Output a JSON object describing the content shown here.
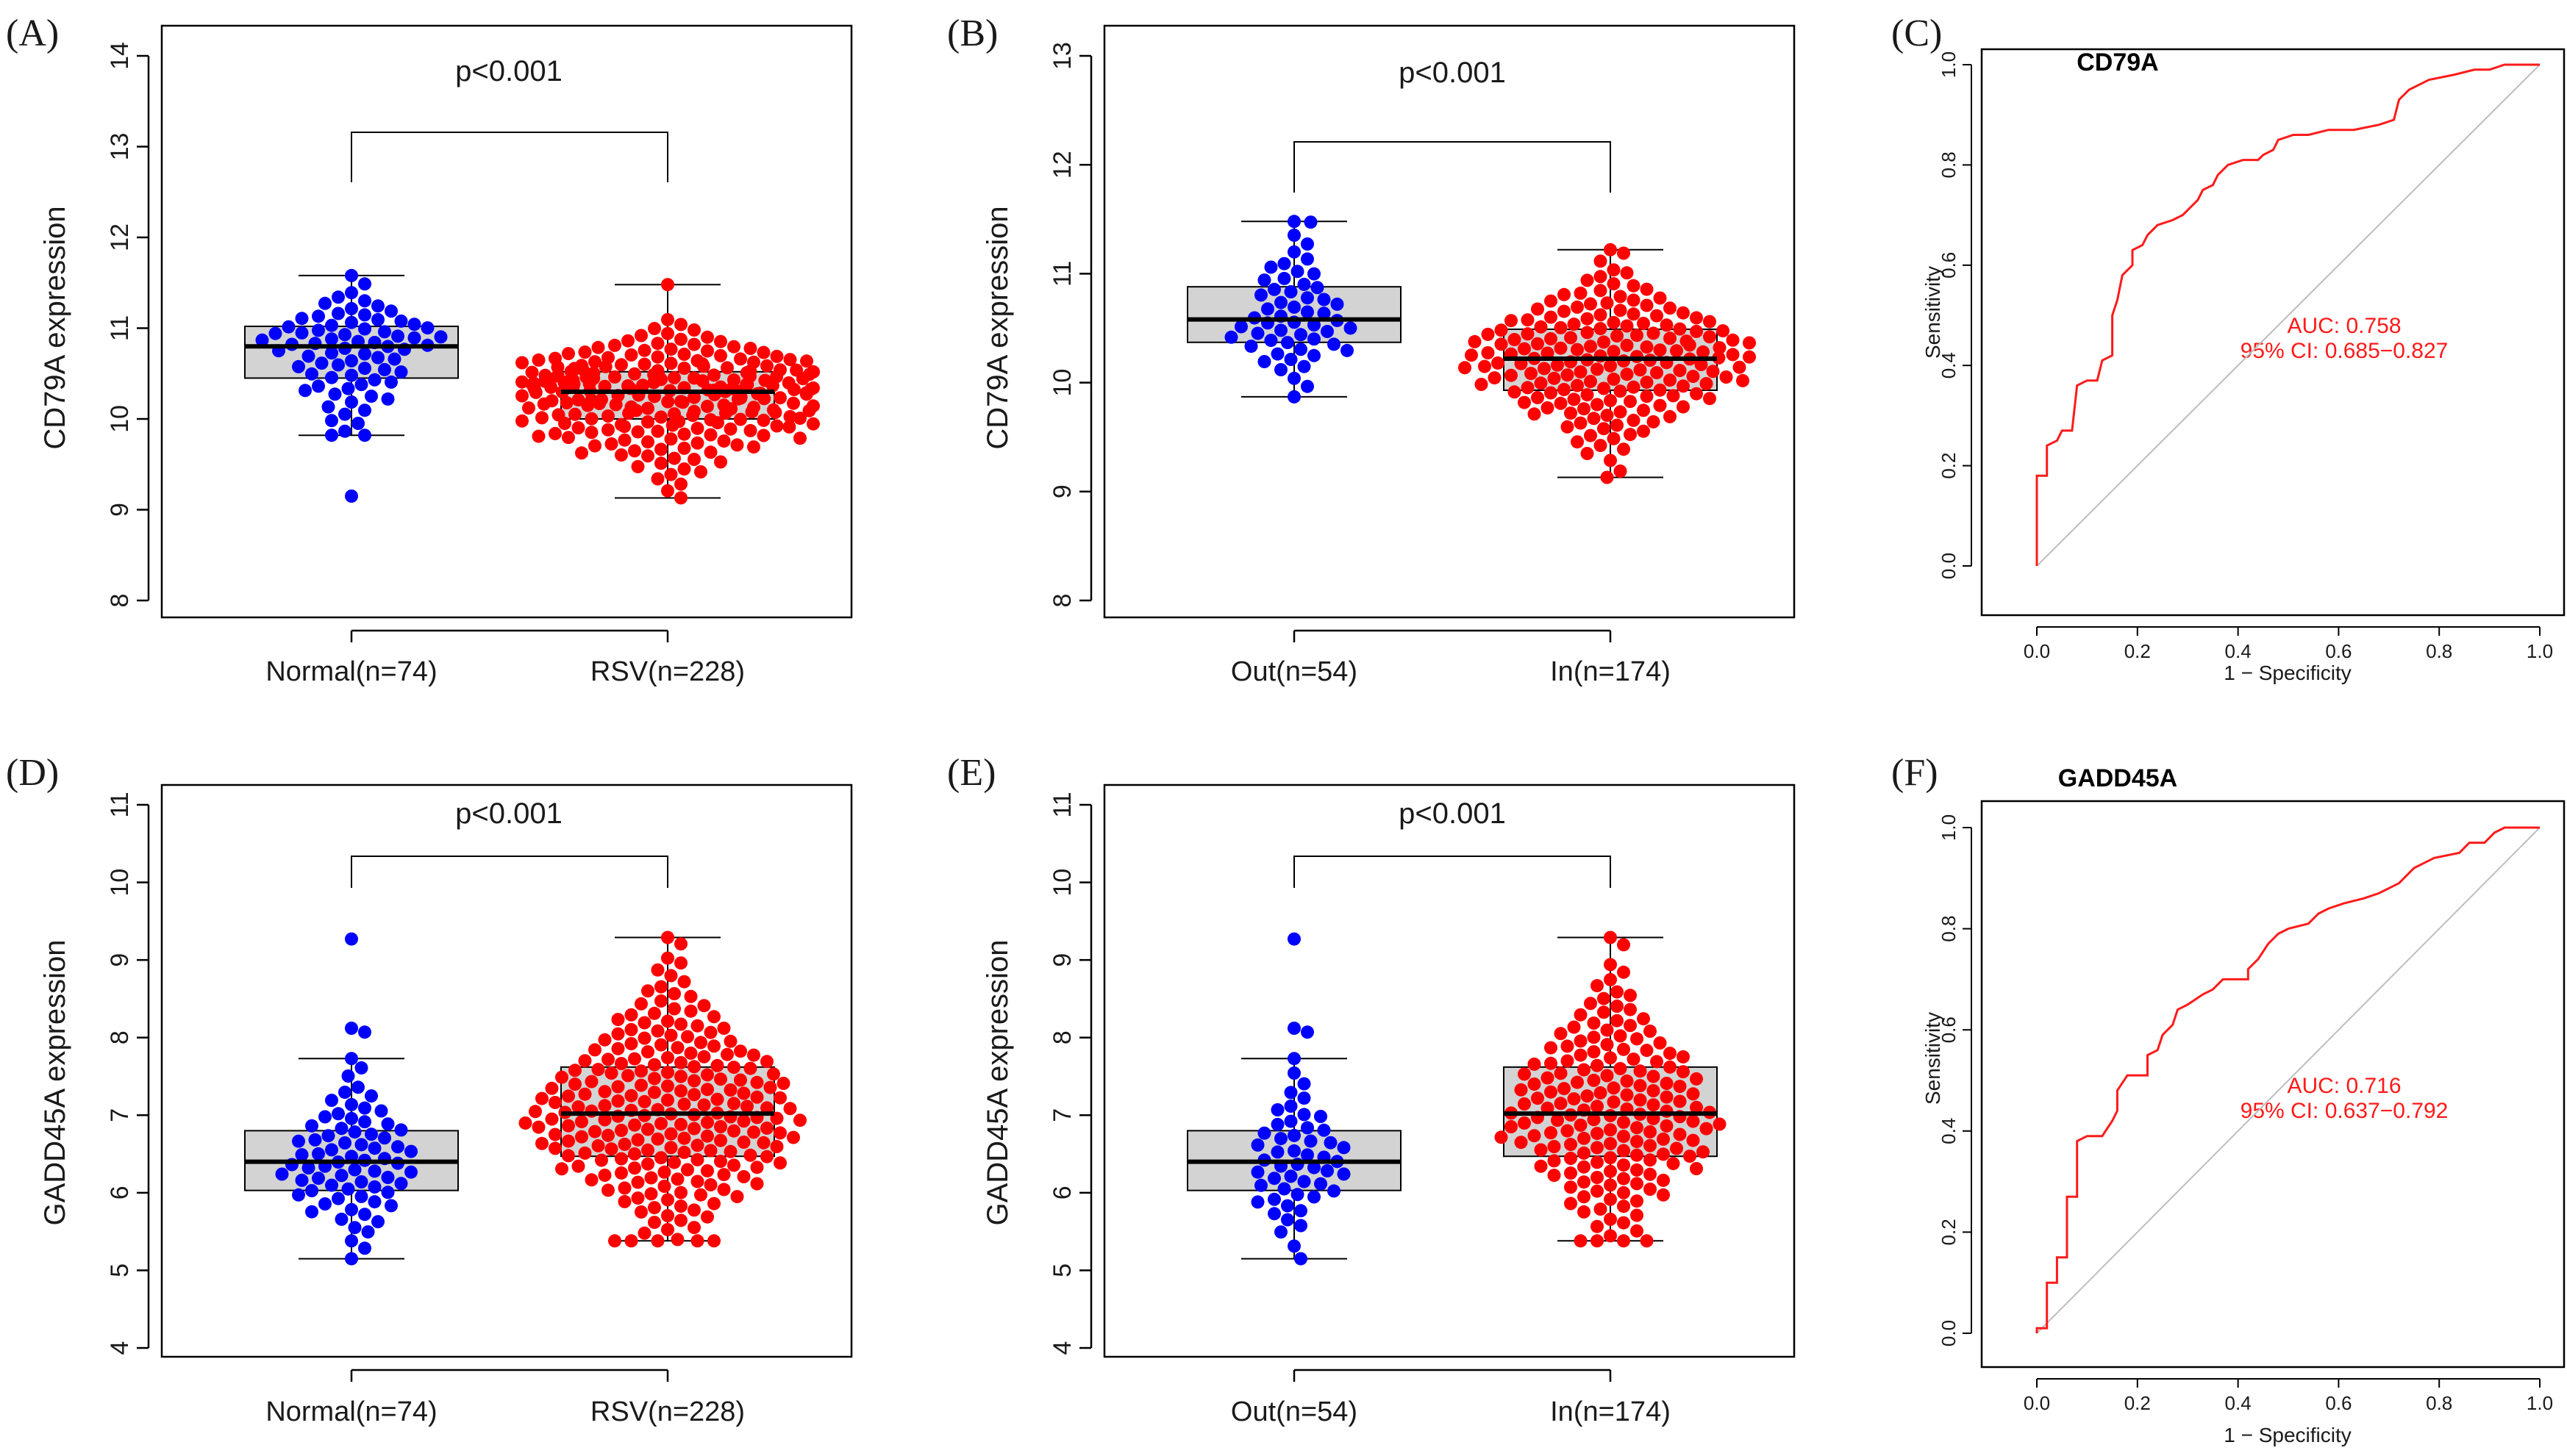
{
  "chart_data": [
    {
      "id": "A",
      "panel_label": "(A)",
      "type": "box",
      "ylabel": "CD79A  expression",
      "ylim": [
        8,
        14
      ],
      "yticks": [
        "8",
        "9",
        "10",
        "11",
        "12",
        "13",
        "14"
      ],
      "pvalue": "p<0.001",
      "groups": [
        {
          "label": "Normal(n=74)",
          "n": 74,
          "color": "#0000ff",
          "min": 9.82,
          "q1": 10.45,
          "median": 10.8,
          "q3": 11.02,
          "max": 11.58,
          "outliers": [
            9.15
          ],
          "dist": "skewhigh"
        },
        {
          "label": "RSV(n=228)",
          "n": 228,
          "color": "#ff0000",
          "min": 9.13,
          "q1": 10.0,
          "median": 10.3,
          "q3": 10.52,
          "max": 11.48,
          "outliers": [],
          "dist": "normal"
        }
      ]
    },
    {
      "id": "B",
      "panel_label": "(B)",
      "type": "box",
      "ylabel": "CD79A  expression",
      "ylim": [
        8,
        13
      ],
      "yticks": [
        "8",
        "9",
        "10",
        "11",
        "12",
        "13"
      ],
      "pvalue": "p<0.001",
      "groups": [
        {
          "label": "Out(n=54)",
          "n": 54,
          "color": "#0000ff",
          "min": 9.87,
          "q1": 10.37,
          "median": 10.58,
          "q3": 10.88,
          "max": 11.48,
          "outliers": [],
          "dist": "normal"
        },
        {
          "label": "In(n=174)",
          "n": 174,
          "color": "#ff0000",
          "min": 9.13,
          "q1": 9.93,
          "median": 10.22,
          "q3": 10.49,
          "max": 11.22,
          "outliers": [],
          "dist": "normal"
        }
      ]
    },
    {
      "id": "C",
      "panel_label": "(C)",
      "type": "roc",
      "title": "CD79A",
      "xlabel": "1 − Specificity",
      "ylabel": "Sensitivity",
      "xticks": [
        "0.0",
        "0.2",
        "0.4",
        "0.6",
        "0.8",
        "1.0"
      ],
      "yticks": [
        "0.0",
        "0.2",
        "0.4",
        "0.6",
        "0.8",
        "1.0"
      ],
      "auc_text": "AUC: 0.758",
      "ci_text": "95% CI: 0.685−0.827",
      "color": "#ff1a1a",
      "curve": [
        [
          0,
          0
        ],
        [
          0,
          0.18
        ],
        [
          0.02,
          0.18
        ],
        [
          0.02,
          0.24
        ],
        [
          0.04,
          0.25
        ],
        [
          0.05,
          0.27
        ],
        [
          0.07,
          0.27
        ],
        [
          0.08,
          0.36
        ],
        [
          0.1,
          0.37
        ],
        [
          0.12,
          0.37
        ],
        [
          0.13,
          0.41
        ],
        [
          0.15,
          0.42
        ],
        [
          0.15,
          0.5
        ],
        [
          0.16,
          0.53
        ],
        [
          0.17,
          0.58
        ],
        [
          0.19,
          0.6
        ],
        [
          0.19,
          0.63
        ],
        [
          0.21,
          0.64
        ],
        [
          0.22,
          0.66
        ],
        [
          0.24,
          0.68
        ],
        [
          0.27,
          0.69
        ],
        [
          0.29,
          0.7
        ],
        [
          0.31,
          0.72
        ],
        [
          0.32,
          0.73
        ],
        [
          0.33,
          0.75
        ],
        [
          0.35,
          0.76
        ],
        [
          0.36,
          0.78
        ],
        [
          0.38,
          0.8
        ],
        [
          0.41,
          0.81
        ],
        [
          0.44,
          0.81
        ],
        [
          0.45,
          0.82
        ],
        [
          0.47,
          0.83
        ],
        [
          0.48,
          0.85
        ],
        [
          0.51,
          0.86
        ],
        [
          0.54,
          0.86
        ],
        [
          0.58,
          0.87
        ],
        [
          0.63,
          0.87
        ],
        [
          0.68,
          0.88
        ],
        [
          0.71,
          0.89
        ],
        [
          0.72,
          0.93
        ],
        [
          0.74,
          0.95
        ],
        [
          0.78,
          0.97
        ],
        [
          0.83,
          0.98
        ],
        [
          0.87,
          0.99
        ],
        [
          0.9,
          0.99
        ],
        [
          0.93,
          1.0
        ],
        [
          1.0,
          1.0
        ]
      ]
    },
    {
      "id": "D",
      "panel_label": "(D)",
      "type": "box",
      "ylabel": "GADD45A  expression",
      "ylim": [
        4,
        11
      ],
      "yticks": [
        "4",
        "5",
        "6",
        "7",
        "8",
        "9",
        "10",
        "11"
      ],
      "pvalue": "p<0.001",
      "groups": [
        {
          "label": "Normal(n=74)",
          "n": 74,
          "color": "#0000ff",
          "min": 5.15,
          "q1": 6.03,
          "median": 6.4,
          "q3": 6.8,
          "max": 7.73,
          "outliers": [
            8.07,
            8.12,
            9.27
          ],
          "dist": "normal"
        },
        {
          "label": "RSV(n=228)",
          "n": 228,
          "color": "#ff0000",
          "min": 5.38,
          "q1": 6.47,
          "median": 7.02,
          "q3": 7.62,
          "max": 9.29,
          "outliers": [],
          "dist": "normal"
        }
      ]
    },
    {
      "id": "E",
      "panel_label": "(E)",
      "type": "box",
      "ylabel": "GADD45A  expression",
      "ylim": [
        4,
        11
      ],
      "yticks": [
        "4",
        "5",
        "6",
        "7",
        "8",
        "9",
        "10",
        "11"
      ],
      "pvalue": "p<0.001",
      "groups": [
        {
          "label": "Out(n=54)",
          "n": 54,
          "color": "#0000ff",
          "min": 5.15,
          "q1": 6.03,
          "median": 6.4,
          "q3": 6.8,
          "max": 7.73,
          "outliers": [
            8.07,
            8.12,
            9.27
          ],
          "dist": "normal"
        },
        {
          "label": "In(n=174)",
          "n": 174,
          "color": "#ff0000",
          "min": 5.38,
          "q1": 6.47,
          "median": 7.02,
          "q3": 7.62,
          "max": 9.29,
          "outliers": [],
          "dist": "normal"
        }
      ]
    },
    {
      "id": "F",
      "panel_label": "(F)",
      "type": "roc",
      "title": "GADD45A",
      "xlabel": "1 − Specificity",
      "ylabel": "Sensitivity",
      "xticks": [
        "0.0",
        "0.2",
        "0.4",
        "0.6",
        "0.8",
        "1.0"
      ],
      "yticks": [
        "0.0",
        "0.2",
        "0.4",
        "0.6",
        "0.8",
        "1.0"
      ],
      "auc_text": "AUC: 0.716",
      "ci_text": "95% CI: 0.637−0.792",
      "color": "#ff1a1a",
      "curve": [
        [
          0,
          0
        ],
        [
          0,
          0.01
        ],
        [
          0.02,
          0.01
        ],
        [
          0.02,
          0.1
        ],
        [
          0.04,
          0.1
        ],
        [
          0.04,
          0.15
        ],
        [
          0.06,
          0.15
        ],
        [
          0.06,
          0.27
        ],
        [
          0.08,
          0.27
        ],
        [
          0.08,
          0.38
        ],
        [
          0.1,
          0.39
        ],
        [
          0.13,
          0.39
        ],
        [
          0.15,
          0.42
        ],
        [
          0.16,
          0.44
        ],
        [
          0.16,
          0.48
        ],
        [
          0.18,
          0.51
        ],
        [
          0.22,
          0.51
        ],
        [
          0.22,
          0.55
        ],
        [
          0.24,
          0.56
        ],
        [
          0.25,
          0.59
        ],
        [
          0.27,
          0.61
        ],
        [
          0.28,
          0.64
        ],
        [
          0.3,
          0.65
        ],
        [
          0.33,
          0.67
        ],
        [
          0.35,
          0.68
        ],
        [
          0.37,
          0.7
        ],
        [
          0.42,
          0.7
        ],
        [
          0.42,
          0.72
        ],
        [
          0.44,
          0.74
        ],
        [
          0.46,
          0.77
        ],
        [
          0.48,
          0.79
        ],
        [
          0.5,
          0.8
        ],
        [
          0.54,
          0.81
        ],
        [
          0.56,
          0.83
        ],
        [
          0.58,
          0.84
        ],
        [
          0.61,
          0.85
        ],
        [
          0.65,
          0.86
        ],
        [
          0.68,
          0.87
        ],
        [
          0.72,
          0.89
        ],
        [
          0.75,
          0.92
        ],
        [
          0.79,
          0.94
        ],
        [
          0.84,
          0.95
        ],
        [
          0.86,
          0.97
        ],
        [
          0.89,
          0.97
        ],
        [
          0.91,
          0.99
        ],
        [
          0.93,
          1.0
        ],
        [
          1.0,
          1.0
        ]
      ]
    }
  ]
}
